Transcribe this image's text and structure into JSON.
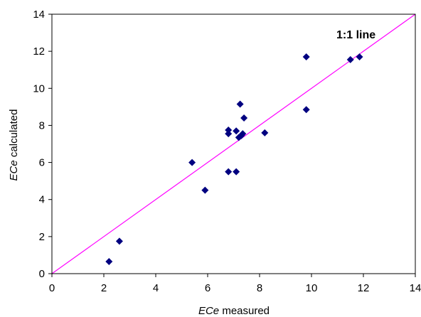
{
  "chart_data": {
    "type": "scatter",
    "title": "",
    "xlabel": {
      "italic": "ECe",
      "rest": " measured"
    },
    "ylabel": {
      "italic": "ECe",
      "rest": " calculated"
    },
    "xlim": [
      0,
      14
    ],
    "ylim": [
      0,
      14
    ],
    "xticks": [
      0,
      2,
      4,
      6,
      8,
      10,
      12,
      14
    ],
    "yticks": [
      0,
      2,
      4,
      6,
      8,
      10,
      12,
      14
    ],
    "grid": false,
    "legend": "none",
    "annotation": "1:1 line",
    "reference_line": {
      "label": "1:1 line",
      "from": [
        0,
        0
      ],
      "to": [
        14,
        14
      ],
      "color": "#ff00ff"
    },
    "marker_color": "#000080",
    "series": [
      {
        "marker": "diamond",
        "points": [
          [
            2.2,
            0.65
          ],
          [
            2.6,
            1.75
          ],
          [
            5.4,
            6.0
          ],
          [
            5.9,
            4.5
          ],
          [
            6.8,
            5.5
          ],
          [
            7.1,
            5.5
          ],
          [
            6.8,
            7.55
          ],
          [
            6.8,
            7.75
          ],
          [
            7.1,
            7.7
          ],
          [
            7.2,
            7.35
          ],
          [
            7.3,
            7.45
          ],
          [
            7.35,
            7.55
          ],
          [
            7.25,
            9.15
          ],
          [
            7.4,
            8.4
          ],
          [
            8.2,
            7.6
          ],
          [
            9.8,
            11.7
          ],
          [
            9.8,
            8.85
          ],
          [
            11.5,
            11.55
          ],
          [
            11.85,
            11.7
          ]
        ]
      }
    ]
  }
}
